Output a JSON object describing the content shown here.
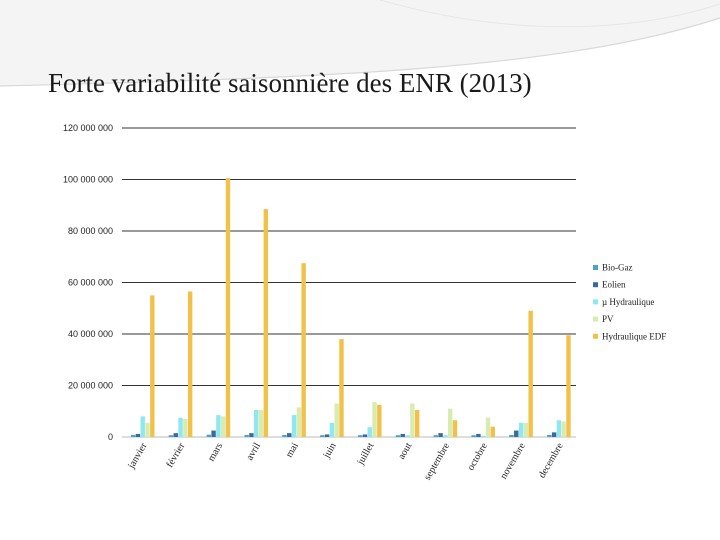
{
  "slide": {
    "title": "Forte variabilité saisonnière des ENR (2013)"
  },
  "chart_data": {
    "type": "bar",
    "title": "",
    "xlabel": "",
    "ylabel": "",
    "ylim": [
      0,
      120000000
    ],
    "yticks": [
      0,
      20000000,
      40000000,
      60000000,
      80000000,
      100000000,
      120000000
    ],
    "ytick_labels": [
      "0",
      "20 000 000",
      "40 000 000",
      "60 000 000",
      "80 000 000",
      "100 000 000",
      "120 000 000"
    ],
    "grid": true,
    "legend_position": "right",
    "categories": [
      "janvier",
      "février",
      "mars",
      "avril",
      "mai",
      "juin",
      "juillet",
      "aout",
      "septembre",
      "octobre",
      "novembre",
      "decembre"
    ],
    "series": [
      {
        "name": "Bio-Gaz",
        "color": "#4aa3c8",
        "values": [
          800000,
          700000,
          900000,
          800000,
          800000,
          700000,
          700000,
          700000,
          700000,
          700000,
          800000,
          800000
        ]
      },
      {
        "name": "Eolien",
        "color": "#3a6a9e",
        "values": [
          1200000,
          1500000,
          2500000,
          1500000,
          1500000,
          1000000,
          1000000,
          1200000,
          1500000,
          1200000,
          2500000,
          1800000
        ]
      },
      {
        "name": "µ Hydraulique",
        "color": "#8ee8f2",
        "values": [
          8000000,
          7500000,
          8500000,
          10500000,
          8500000,
          5500000,
          3800000,
          700000,
          700000,
          500000,
          5500000,
          6500000
        ]
      },
      {
        "name": "PV",
        "color": "#d8ecb0",
        "values": [
          5500000,
          7000000,
          8000000,
          10500000,
          11500000,
          13000000,
          13500000,
          13000000,
          11000000,
          7500000,
          5500000,
          6000000
        ]
      },
      {
        "name": "Hydraulique EDF",
        "color": "#f2c14a",
        "values": [
          55000000,
          56500000,
          100500000,
          88500000,
          67500000,
          38000000,
          12500000,
          10500000,
          6500000,
          4000000,
          49000000,
          39500000
        ]
      }
    ]
  }
}
